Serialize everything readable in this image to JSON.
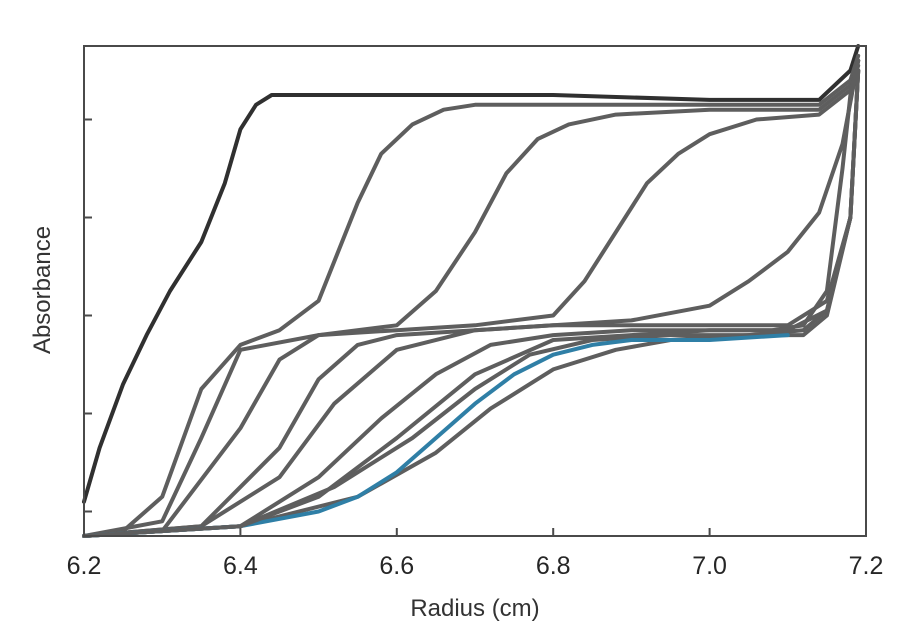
{
  "chart_data": {
    "type": "line",
    "title": "",
    "xlabel": "Radius (cm)",
    "ylabel": "Absorbance",
    "xlim": [
      6.2,
      7.2
    ],
    "ylim": [
      0,
      1.0
    ],
    "xticks": [
      6.2,
      6.4,
      6.6,
      6.8,
      7.0,
      7.2
    ],
    "xtick_labels": [
      "6.2",
      "6.4",
      "6.6",
      "6.8",
      "7.0",
      "7.2"
    ],
    "yticks": [
      0.05,
      0.25,
      0.45,
      0.65,
      0.85
    ],
    "ytick_labels": [],
    "grid": false,
    "legend": "none",
    "colors": {
      "primary_series": "#303030",
      "series": "#5e5e5e",
      "highlight_series": "#2f7fa6",
      "frame": "#4a4a4a"
    },
    "series": [
      {
        "color": "#303030",
        "x": [
          6.2,
          6.22,
          6.25,
          6.28,
          6.31,
          6.35,
          6.38,
          6.4,
          6.42,
          6.44,
          6.5,
          6.6,
          6.8,
          7.0,
          7.14,
          7.18,
          7.19
        ],
        "y": [
          0.07,
          0.18,
          0.31,
          0.41,
          0.5,
          0.6,
          0.72,
          0.83,
          0.88,
          0.9,
          0.9,
          0.9,
          0.9,
          0.89,
          0.89,
          0.95,
          1.0
        ]
      },
      {
        "color": "#5e5e5e",
        "x": [
          6.2,
          6.25,
          6.3,
          6.35,
          6.4,
          6.45,
          6.5,
          6.52,
          6.55,
          6.58,
          6.62,
          6.66,
          6.7,
          6.8,
          7.0,
          7.14,
          7.18,
          7.19
        ],
        "y": [
          0.0,
          0.01,
          0.08,
          0.3,
          0.39,
          0.42,
          0.48,
          0.56,
          0.68,
          0.78,
          0.84,
          0.87,
          0.88,
          0.88,
          0.88,
          0.88,
          0.93,
          0.98
        ]
      },
      {
        "color": "#5e5e5e",
        "x": [
          6.2,
          6.3,
          6.35,
          6.4,
          6.5,
          6.6,
          6.65,
          6.7,
          6.74,
          6.78,
          6.82,
          6.88,
          7.0,
          7.14,
          7.18,
          7.19
        ],
        "y": [
          0.0,
          0.03,
          0.2,
          0.38,
          0.41,
          0.43,
          0.5,
          0.62,
          0.74,
          0.81,
          0.84,
          0.86,
          0.87,
          0.87,
          0.92,
          0.97
        ]
      },
      {
        "color": "#5e5e5e",
        "x": [
          6.2,
          6.3,
          6.4,
          6.45,
          6.5,
          6.6,
          6.7,
          6.8,
          6.84,
          6.88,
          6.92,
          6.96,
          7.0,
          7.06,
          7.14,
          7.18,
          7.19
        ],
        "y": [
          0.0,
          0.01,
          0.22,
          0.36,
          0.41,
          0.42,
          0.43,
          0.45,
          0.52,
          0.62,
          0.72,
          0.78,
          0.82,
          0.85,
          0.86,
          0.91,
          0.96
        ]
      },
      {
        "color": "#5e5e5e",
        "x": [
          6.2,
          6.35,
          6.45,
          6.5,
          6.55,
          6.6,
          6.7,
          6.8,
          6.9,
          7.0,
          7.05,
          7.1,
          7.14,
          7.17,
          7.19
        ],
        "y": [
          0.0,
          0.02,
          0.18,
          0.32,
          0.39,
          0.41,
          0.42,
          0.43,
          0.44,
          0.47,
          0.52,
          0.58,
          0.66,
          0.8,
          0.97
        ]
      },
      {
        "color": "#5e5e5e",
        "x": [
          6.2,
          6.35,
          6.45,
          6.52,
          6.6,
          6.7,
          6.8,
          6.9,
          7.0,
          7.1,
          7.15,
          7.18,
          7.19
        ],
        "y": [
          0.0,
          0.02,
          0.12,
          0.27,
          0.38,
          0.42,
          0.43,
          0.43,
          0.43,
          0.43,
          0.48,
          0.65,
          0.95
        ]
      },
      {
        "color": "#5e5e5e",
        "x": [
          6.2,
          6.4,
          6.5,
          6.58,
          6.65,
          6.72,
          6.8,
          6.9,
          7.0,
          7.1,
          7.15,
          7.18,
          7.19
        ],
        "y": [
          0.0,
          0.02,
          0.12,
          0.24,
          0.33,
          0.39,
          0.41,
          0.42,
          0.42,
          0.42,
          0.46,
          0.65,
          0.95
        ]
      },
      {
        "color": "#5e5e5e",
        "x": [
          6.2,
          6.4,
          6.52,
          6.62,
          6.7,
          6.77,
          6.85,
          6.95,
          7.05,
          7.12,
          7.15,
          7.18,
          7.19
        ],
        "y": [
          0.0,
          0.02,
          0.1,
          0.2,
          0.3,
          0.37,
          0.4,
          0.41,
          0.41,
          0.42,
          0.46,
          0.65,
          0.95
        ]
      },
      {
        "color": "#5e5e5e",
        "x": [
          6.2,
          6.4,
          6.55,
          6.65,
          6.72,
          6.8,
          6.88,
          6.95,
          7.05,
          7.12,
          7.15,
          7.18,
          7.19
        ],
        "y": [
          0.0,
          0.02,
          0.08,
          0.17,
          0.26,
          0.34,
          0.38,
          0.4,
          0.41,
          0.41,
          0.45,
          0.65,
          0.95
        ]
      },
      {
        "color": "#2f7fa6",
        "x": [
          6.2,
          6.4,
          6.5,
          6.55,
          6.6,
          6.65,
          6.7,
          6.75,
          6.8,
          6.85,
          6.9,
          6.95,
          7.0,
          7.1
        ],
        "y": [
          0.0,
          0.02,
          0.05,
          0.08,
          0.13,
          0.2,
          0.27,
          0.33,
          0.37,
          0.39,
          0.4,
          0.4,
          0.4,
          0.41
        ]
      },
      {
        "color": "#5e5e5e",
        "x": [
          6.2,
          6.4,
          6.5,
          6.6,
          6.7,
          6.8,
          6.9,
          7.0,
          7.08,
          7.12,
          7.15,
          7.17,
          7.18,
          7.19
        ],
        "y": [
          0.0,
          0.02,
          0.08,
          0.2,
          0.33,
          0.4,
          0.41,
          0.42,
          0.42,
          0.43,
          0.5,
          0.75,
          0.9,
          0.97
        ]
      }
    ]
  }
}
